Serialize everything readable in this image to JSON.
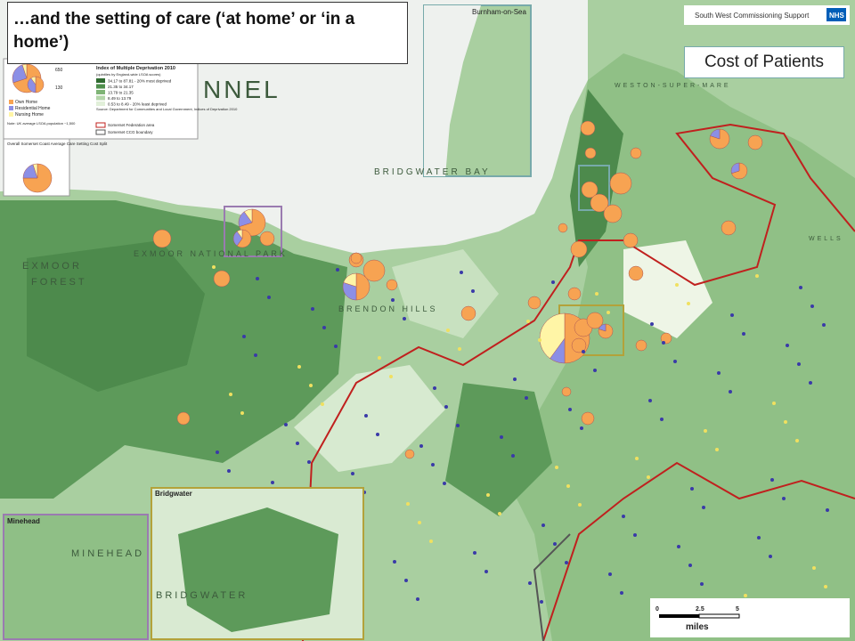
{
  "title": "…and the setting of care (‘at home’ or ‘in a home’)",
  "badge": "Cost of Patients",
  "header": {
    "org": "South West Commissioning Support",
    "logo": "NHS"
  },
  "legend": {
    "pie_sizes": [
      "650",
      "130"
    ],
    "pie_items": [
      "Own Home",
      "Residential Home",
      "Nursing Home"
    ],
    "note": "Note: UK average LSOA population ~1,500",
    "imd_title": "Index of Multiple Deprivation 2010",
    "imd_sub": "(quintiles by England-wide LSOA scores)",
    "imd_items": [
      "34.17 to 87.81 - 20% most deprived",
      "21.35 to 34.17",
      "13.79 to 21.35",
      "8.49 to 13.79",
      "0.53 to 8.49 - 20% least deprived"
    ],
    "source": "Source: Department for Communities and Local Government, Indices of Deprivation 2010",
    "boundaries": [
      "Somerset Federation area",
      "Somerset CCG boundary"
    ],
    "split_title": "Overall Somerset Coast Average Care Setting Cost Split"
  },
  "insets": [
    "Burnham-on-Sea",
    "Bridgwater",
    "Minehead"
  ],
  "places": [
    "EXMOOR",
    "FOREST",
    "EXMOOR NATIONAL PARK",
    "BRENDON HILLS",
    "BRIDGWATER BAY",
    "WESTON-SUPER-MARE",
    "WELLS",
    "MINEHEAD",
    "BRIDGWATER",
    "NNEL"
  ],
  "scale": {
    "ticks": [
      0,
      2.5,
      5
    ],
    "unit": "miles"
  }
}
